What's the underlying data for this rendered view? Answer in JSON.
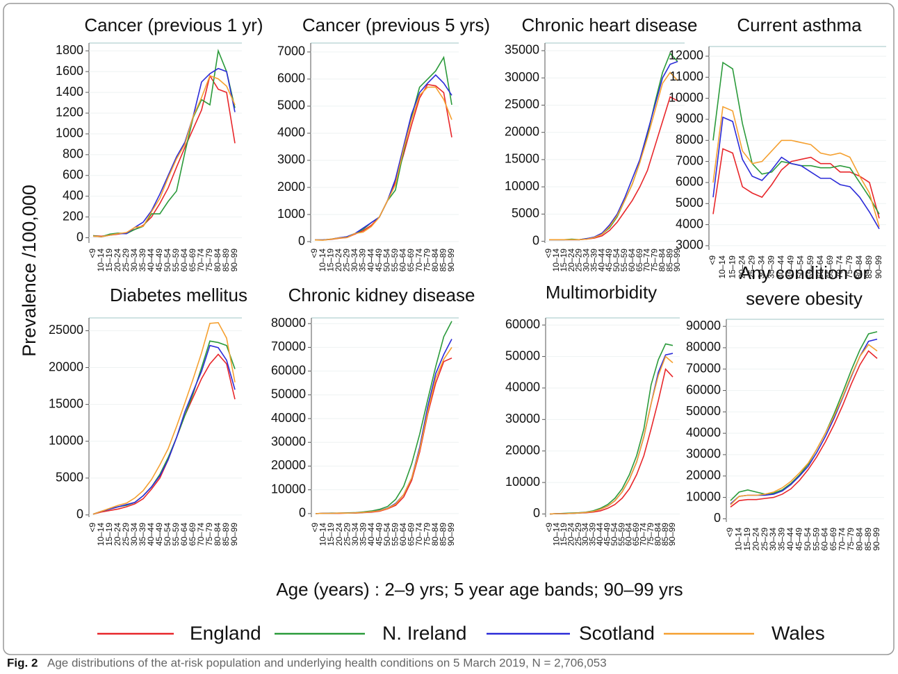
{
  "chart_data": [
    {
      "type": "line",
      "title": "Cancer (previous 1 yr)",
      "categories": [
        "<9",
        "10–14",
        "15–19",
        "20–24",
        "25–29",
        "30–34",
        "35–39",
        "40–44",
        "45–49",
        "50–54",
        "55–59",
        "60–64",
        "65–69",
        "70–74",
        "75–79",
        "80–84",
        "85–89",
        "90–99"
      ],
      "series": [
        {
          "name": "England",
          "color": "#e8262a",
          "values": [
            20,
            15,
            25,
            35,
            50,
            80,
            120,
            200,
            330,
            480,
            680,
            870,
            1050,
            1230,
            1560,
            1430,
            1400,
            910
          ]
        },
        {
          "name": "N. Ireland",
          "color": "#2a9a3a",
          "values": [
            20,
            10,
            35,
            45,
            40,
            80,
            110,
            230,
            230,
            350,
            450,
            820,
            1160,
            1330,
            1280,
            1800,
            1600,
            1250
          ]
        },
        {
          "name": "Scotland",
          "color": "#2b2bd8",
          "values": [
            15,
            10,
            25,
            40,
            40,
            100,
            150,
            260,
            420,
            600,
            780,
            920,
            1170,
            1500,
            1580,
            1630,
            1600,
            1210
          ]
        },
        {
          "name": "Wales",
          "color": "#f5a030",
          "values": [
            15,
            10,
            25,
            40,
            50,
            100,
            110,
            250,
            380,
            580,
            760,
            900,
            1170,
            1350,
            1560,
            1530,
            1460,
            1280
          ]
        }
      ],
      "ylim": [
        -50,
        1875
      ],
      "yticks": [
        0,
        200,
        400,
        600,
        800,
        1000,
        1200,
        1400,
        1600,
        1800
      ]
    },
    {
      "type": "line",
      "title": "Cancer (previous 5 yrs)",
      "categories": [
        "<9",
        "10–14",
        "15–19",
        "20–24",
        "25–29",
        "30–34",
        "35–39",
        "40–44",
        "45–49",
        "50–54",
        "55–59",
        "60–64",
        "65–69",
        "70–74",
        "75–79",
        "80–84",
        "85–89",
        "90–99"
      ],
      "series": [
        {
          "name": "England",
          "color": "#e8262a",
          "values": [
            60,
            60,
            80,
            120,
            150,
            280,
            400,
            600,
            900,
            1500,
            2200,
            3200,
            4300,
            5300,
            5800,
            5750,
            5500,
            3850
          ]
        },
        {
          "name": "N. Ireland",
          "color": "#2a9a3a",
          "values": [
            60,
            60,
            90,
            130,
            180,
            300,
            450,
            700,
            900,
            1500,
            1900,
            3300,
            4600,
            5700,
            6000,
            6300,
            6800,
            5050
          ]
        },
        {
          "name": "Scotland",
          "color": "#2b2bd8",
          "values": [
            60,
            60,
            90,
            140,
            180,
            300,
            500,
            700,
            900,
            1500,
            2300,
            3500,
            4700,
            5500,
            5850,
            6150,
            5850,
            5400
          ]
        },
        {
          "name": "Wales",
          "color": "#f5a030",
          "values": [
            60,
            50,
            90,
            130,
            150,
            300,
            350,
            550,
            900,
            1500,
            2100,
            3400,
            4500,
            5400,
            5700,
            5700,
            5250,
            4500
          ]
        }
      ],
      "ylim": [
        -50,
        7330
      ],
      "yticks": [
        0,
        1000,
        2000,
        3000,
        4000,
        5000,
        6000,
        7000
      ]
    },
    {
      "type": "line",
      "title": "Chronic heart disease",
      "categories": [
        "<9",
        "10–14",
        "15–19",
        "20–24",
        "25–29",
        "30–34",
        "35–39",
        "40–44",
        "45–49",
        "50–54",
        "55–59",
        "60–64",
        "65–69",
        "70–74",
        "75–79",
        "80–84",
        "85–89",
        "90–99"
      ],
      "series": [
        {
          "name": "England",
          "color": "#e8262a",
          "values": [
            300,
            300,
            300,
            300,
            300,
            400,
            600,
            1000,
            2000,
            3500,
            5500,
            7500,
            10000,
            13000,
            17500,
            22000,
            26500,
            25800
          ]
        },
        {
          "name": "N. Ireland",
          "color": "#2a9a3a",
          "values": [
            300,
            300,
            300,
            400,
            300,
            500,
            700,
            1300,
            2500,
            4500,
            7500,
            10500,
            14500,
            19500,
            25500,
            31000,
            34500,
            33000
          ]
        },
        {
          "name": "Scotland",
          "color": "#2b2bd8",
          "values": [
            300,
            300,
            300,
            300,
            300,
            500,
            800,
            1500,
            3000,
            5000,
            8000,
            11500,
            15000,
            20000,
            25000,
            30000,
            32500,
            33000
          ]
        },
        {
          "name": "Wales",
          "color": "#f5a030",
          "values": [
            300,
            300,
            300,
            300,
            300,
            400,
            700,
            1300,
            2700,
            4700,
            7500,
            10500,
            14500,
            19000,
            24000,
            29000,
            31000,
            29500
          ]
        }
      ],
      "ylim": [
        -300,
        36400
      ],
      "yticks": [
        0,
        5000,
        10000,
        15000,
        20000,
        25000,
        30000,
        35000
      ]
    },
    {
      "type": "line",
      "title": "Current asthma",
      "categories": [
        "<9",
        "10–14",
        "15–19",
        "20–24",
        "25–29",
        "30–34",
        "35–39",
        "40–44",
        "45–49",
        "50–54",
        "55–59",
        "60–64",
        "65–69",
        "70–74",
        "75–79",
        "80–84",
        "85–89",
        "90–99"
      ],
      "series": [
        {
          "name": "England",
          "color": "#e8262a",
          "values": [
            4500,
            7600,
            7400,
            5800,
            5500,
            5300,
            5900,
            6600,
            7000,
            7100,
            7200,
            6900,
            6900,
            6500,
            6500,
            6300,
            6000,
            4300
          ]
        },
        {
          "name": "N. Ireland",
          "color": "#2a9a3a",
          "values": [
            8000,
            11700,
            11400,
            8800,
            6900,
            6400,
            6500,
            7000,
            6900,
            6800,
            6800,
            6700,
            6700,
            6800,
            6700,
            6000,
            5300,
            4500
          ]
        },
        {
          "name": "Scotland",
          "color": "#2b2bd8",
          "values": [
            5300,
            9100,
            8900,
            7100,
            6300,
            6100,
            6600,
            7200,
            6900,
            6800,
            6500,
            6200,
            6200,
            5900,
            5800,
            5300,
            4600,
            3800
          ]
        },
        {
          "name": "Wales",
          "color": "#f5a030",
          "values": [
            6000,
            9600,
            9400,
            7500,
            6900,
            7000,
            7500,
            8000,
            8000,
            7900,
            7800,
            7400,
            7300,
            7400,
            7200,
            6300,
            5500,
            3900
          ]
        }
      ],
      "ylim": [
        2800,
        12460
      ],
      "yticks": [
        3000,
        4000,
        5000,
        6000,
        7000,
        8000,
        9000,
        10000,
        11000,
        12000
      ]
    },
    {
      "type": "line",
      "title": "Diabetes mellitus",
      "categories": [
        "<9",
        "10–14",
        "15–19",
        "20–24",
        "25–29",
        "30–34",
        "35–39",
        "40–44",
        "45–49",
        "50–54",
        "55–59",
        "60–64",
        "65–69",
        "70–74",
        "75–79",
        "80–84",
        "85–89",
        "90–99"
      ],
      "series": [
        {
          "name": "England",
          "color": "#e8262a",
          "values": [
            100,
            400,
            600,
            800,
            1100,
            1500,
            2200,
            3500,
            5000,
            7500,
            10500,
            13500,
            16000,
            18500,
            20500,
            21800,
            20500,
            15700
          ]
        },
        {
          "name": "N. Ireland",
          "color": "#2a9a3a",
          "values": [
            100,
            500,
            800,
            1100,
            1300,
            1700,
            2600,
            3800,
            5500,
            7800,
            10500,
            13500,
            16500,
            20000,
            23600,
            23400,
            23000,
            19800
          ]
        },
        {
          "name": "Scotland",
          "color": "#2b2bd8",
          "values": [
            100,
            500,
            800,
            1100,
            1400,
            1700,
            2600,
            3800,
            5300,
            7500,
            10500,
            14000,
            16800,
            19500,
            23000,
            22700,
            21000,
            17000
          ]
        },
        {
          "name": "Wales",
          "color": "#f5a030",
          "values": [
            100,
            500,
            900,
            1300,
            1600,
            2300,
            3300,
            4800,
            6800,
            9000,
            12000,
            15200,
            18500,
            22000,
            26000,
            26100,
            24000,
            18000
          ]
        }
      ],
      "ylim": [
        -300,
        26740
      ],
      "yticks": [
        0,
        5000,
        10000,
        15000,
        20000,
        25000
      ]
    },
    {
      "type": "line",
      "title": "Chronic kidney disease",
      "categories": [
        "<9",
        "10–14",
        "15–19",
        "20–24",
        "25–29",
        "30–34",
        "35–39",
        "40–44",
        "45–49",
        "50–54",
        "55–59",
        "60–64",
        "65–69",
        "70–74",
        "75–79",
        "80–84",
        "85–89",
        "90–99"
      ],
      "series": [
        {
          "name": "England",
          "color": "#e8262a",
          "values": [
            0,
            100,
            100,
            100,
            200,
            200,
            400,
            600,
            1000,
            2000,
            3500,
            7000,
            14000,
            26000,
            42000,
            55000,
            64000,
            65500
          ]
        },
        {
          "name": "N. Ireland",
          "color": "#2a9a3a",
          "values": [
            0,
            100,
            200,
            200,
            300,
            400,
            700,
            1100,
            1800,
            3000,
            6000,
            11500,
            21000,
            33500,
            48000,
            62000,
            74500,
            81000
          ]
        },
        {
          "name": "Scotland",
          "color": "#2b2bd8",
          "values": [
            0,
            100,
            100,
            200,
            200,
            300,
            500,
            800,
            1300,
            2300,
            4300,
            8000,
            15000,
            28000,
            45000,
            59000,
            67000,
            73500
          ]
        },
        {
          "name": "Wales",
          "color": "#f5a030",
          "values": [
            0,
            100,
            100,
            200,
            200,
            300,
            500,
            800,
            1200,
            2200,
            4000,
            8000,
            15000,
            27000,
            43000,
            57000,
            65000,
            70000
          ]
        }
      ],
      "ylim": [
        -1500,
        82400
      ],
      "yticks": [
        0,
        10000,
        20000,
        30000,
        40000,
        50000,
        60000,
        70000,
        80000
      ]
    },
    {
      "type": "line",
      "title": "Multimorbidity",
      "categories": [
        "<9",
        "10–14",
        "15–19",
        "20–24",
        "25–29",
        "30–34",
        "35–39",
        "40–44",
        "45–49",
        "50–54",
        "55–59",
        "60–64",
        "65–69",
        "70–74",
        "75–79",
        "80–84",
        "85–89",
        "90–99"
      ],
      "series": [
        {
          "name": "England",
          "color": "#e8262a",
          "values": [
            0,
            100,
            100,
            200,
            300,
            400,
            600,
            1000,
            1800,
            3000,
            5000,
            8000,
            12500,
            18500,
            27000,
            36000,
            46000,
            43500
          ]
        },
        {
          "name": "N. Ireland",
          "color": "#2a9a3a",
          "values": [
            0,
            100,
            200,
            300,
            400,
            600,
            1000,
            1800,
            3000,
            5000,
            8000,
            12500,
            18500,
            27000,
            41000,
            49000,
            54000,
            53500
          ]
        },
        {
          "name": "Scotland",
          "color": "#2b2bd8",
          "values": [
            0,
            100,
            100,
            200,
            300,
            500,
            800,
            1500,
            2500,
            4200,
            7000,
            11000,
            16500,
            24500,
            35000,
            45000,
            50500,
            51000
          ]
        },
        {
          "name": "Wales",
          "color": "#f5a030",
          "values": [
            0,
            100,
            100,
            200,
            300,
            500,
            800,
            1500,
            2500,
            4200,
            7000,
            11000,
            16500,
            24500,
            35000,
            44000,
            50000,
            48000
          ]
        }
      ],
      "ylim": [
        -1000,
        62250
      ],
      "yticks": [
        0,
        10000,
        20000,
        30000,
        40000,
        50000,
        60000
      ]
    },
    {
      "type": "line",
      "title": [
        "Any condition or",
        "severe obesity"
      ],
      "categories": [
        "<9",
        "10–14",
        "15–19",
        "20–24",
        "25–29",
        "30–34",
        "35–39",
        "40–44",
        "45–49",
        "50–54",
        "55–59",
        "60–64",
        "65–69",
        "70–74",
        "75–79",
        "80–84",
        "85–89",
        "90–99"
      ],
      "series": [
        {
          "name": "England",
          "color": "#e8262a",
          "values": [
            5500,
            8500,
            9000,
            9000,
            9500,
            10000,
            11500,
            14000,
            18000,
            23000,
            29000,
            36000,
            44000,
            53000,
            63000,
            72000,
            78500,
            75000
          ]
        },
        {
          "name": "N. Ireland",
          "color": "#2a9a3a",
          "values": [
            8500,
            12500,
            13500,
            12500,
            11500,
            12000,
            13500,
            16500,
            20500,
            25500,
            32500,
            40000,
            49000,
            59000,
            69500,
            79000,
            86500,
            87500
          ]
        },
        {
          "name": "Scotland",
          "color": "#2b2bd8",
          "values": [
            7000,
            10500,
            11000,
            11000,
            11000,
            11500,
            13000,
            16000,
            20000,
            24500,
            31000,
            38500,
            47000,
            56500,
            66500,
            76000,
            83000,
            84000
          ]
        },
        {
          "name": "Wales",
          "color": "#f5a030",
          "values": [
            6500,
            10500,
            11000,
            11000,
            11500,
            12500,
            14500,
            17500,
            21500,
            26000,
            32500,
            40000,
            48000,
            57000,
            67000,
            76000,
            81500,
            78500
          ]
        }
      ],
      "ylim": [
        -1500,
        93300
      ],
      "yticks": [
        0,
        10000,
        20000,
        30000,
        40000,
        50000,
        60000,
        70000,
        80000,
        90000
      ]
    }
  ],
  "y_label": "Prevalence /100,000",
  "x_label": "Age (years) : 2–9 yrs; 5 year age bands; 90–99 yrs",
  "caption": {
    "label": "Fig. 2",
    "text": "Age distributions of the at-risk population and underlying health conditions on 5 March 2019, N = 2,706,053"
  }
}
